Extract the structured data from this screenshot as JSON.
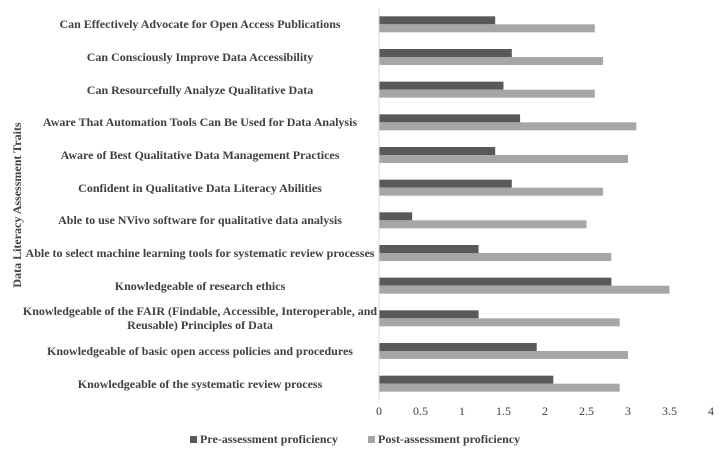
{
  "chart_data": {
    "type": "hbar",
    "y_axis_label": "Data Literacy Assessment Traits",
    "categories": [
      "Can Effectively Advocate for Open Access Publications",
      "Can Consciously Improve Data Accessibility",
      "Can Resourcefully Analyze Qualitative Data",
      "Aware That Automation Tools Can Be Used for Data Analysis",
      "Aware of Best Qualitative Data Management Practices",
      "Confident in Qualitative Data Literacy Abilities",
      "Able to use NVivo software for qualitative data analysis",
      "Able to select machine learning tools for systematic review processes",
      "Knowledgeable of research ethics",
      "Knowledgeable of the FAIR (Findable, Accessible, Interoperable, and Reusable) Principles of Data",
      "Knowledgeable of basic open access policies and procedures",
      "Knowledgeable of the systematic review process"
    ],
    "series": [
      {
        "name": "Pre-assessment proficiency",
        "color": "#595959",
        "values": [
          1.4,
          1.6,
          1.5,
          1.7,
          1.4,
          1.6,
          0.4,
          1.2,
          2.8,
          1.2,
          1.9,
          2.1
        ]
      },
      {
        "name": "Post-assessment proficiency",
        "color": "#a6a6a6",
        "values": [
          2.6,
          2.7,
          2.6,
          3.1,
          3.0,
          2.7,
          2.5,
          2.8,
          3.5,
          2.9,
          3.0,
          2.9
        ]
      }
    ],
    "xlim": [
      0,
      4
    ],
    "xticks": [
      0,
      0.5,
      1,
      1.5,
      2,
      2.5,
      3,
      3.5,
      4
    ],
    "legend": "bottom"
  }
}
